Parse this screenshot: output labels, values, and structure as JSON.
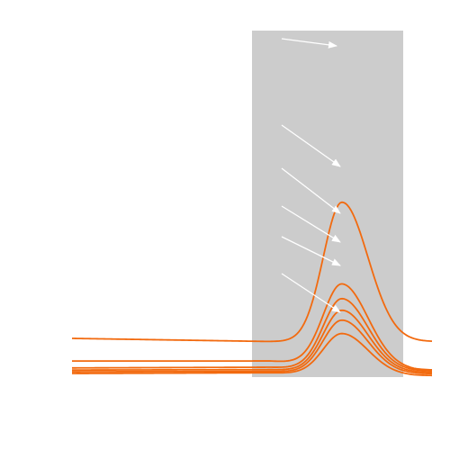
{
  "chart_data": {
    "type": "line",
    "title": "",
    "xlabel": "",
    "ylabel": "",
    "xlim": [
      0,
      100
    ],
    "ylim": [
      0,
      100
    ],
    "grid": false,
    "legend": "none",
    "highlight_band": {
      "x_start": 50,
      "x_end": 92,
      "color": "#cccccc"
    },
    "line_color": "#f26a0f",
    "arrow_color": "#ffffff",
    "series": [
      {
        "baseline_start": 11.4,
        "baseline_end": 10.5,
        "baseline_right": 10.5,
        "peak": 50.6
      },
      {
        "baseline_start": 4.9,
        "baseline_end": 4.9,
        "baseline_right": 2.3,
        "peak": 28.4
      },
      {
        "baseline_start": 2.9,
        "baseline_end": 3.1,
        "baseline_right": 2.0,
        "peak": 23.4
      },
      {
        "baseline_start": 2.3,
        "baseline_end": 2.4,
        "baseline_right": 1.6,
        "peak": 19.9
      },
      {
        "baseline_start": 1.8,
        "baseline_end": 1.9,
        "baseline_right": 1.2,
        "peak": 17.0
      },
      {
        "baseline_start": 1.3,
        "baseline_end": 1.5,
        "baseline_right": 0.7,
        "peak": 13.2
      }
    ],
    "peak_x": 75
  }
}
